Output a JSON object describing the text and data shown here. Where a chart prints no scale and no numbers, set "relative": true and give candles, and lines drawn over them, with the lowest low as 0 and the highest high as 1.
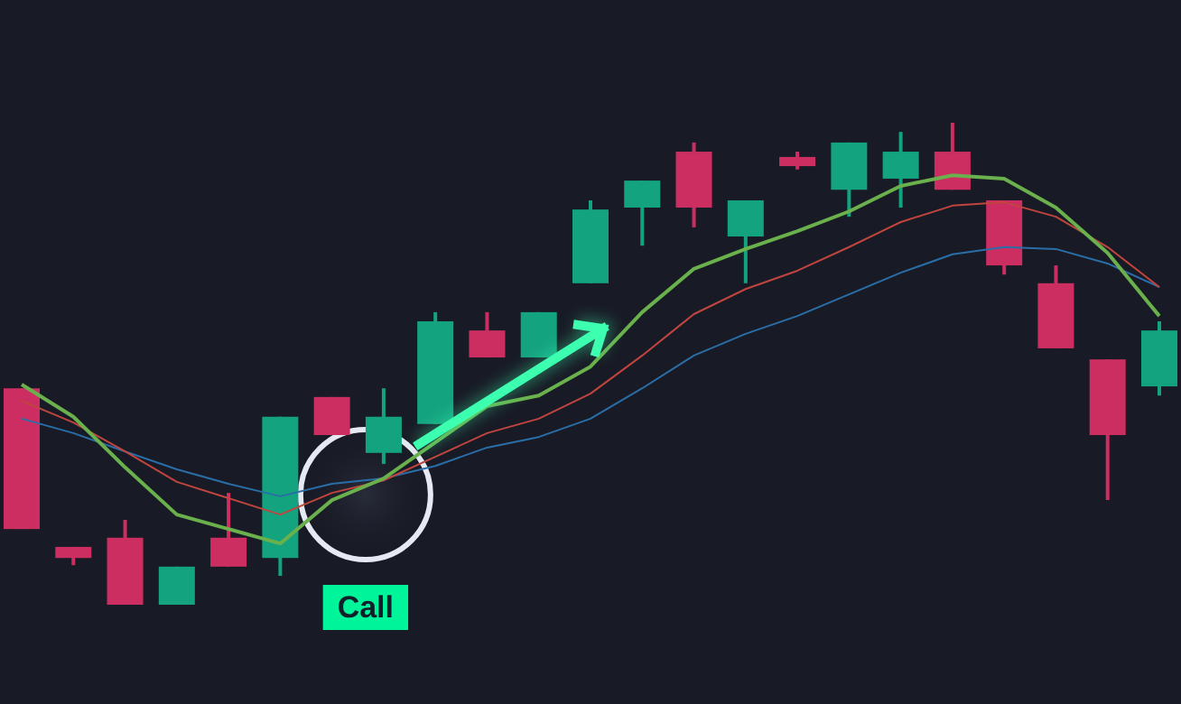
{
  "chart_data": {
    "type": "candlestick",
    "relative": true,
    "categories": [
      null,
      null,
      null,
      null,
      null,
      null,
      null,
      null,
      null,
      null,
      null,
      null,
      null,
      null,
      null,
      null,
      null,
      null,
      null,
      null,
      null,
      null,
      null
    ],
    "ohlc": [
      [
        0.449,
        0.449,
        0.157,
        0.157
      ],
      [
        0.12,
        0.12,
        0.082,
        0.097
      ],
      [
        0.139,
        0.176,
        0,
        0
      ],
      [
        0,
        0.079,
        0,
        0.079
      ],
      [
        0.139,
        0.232,
        0.079,
        0.079
      ],
      [
        0.097,
        0.39,
        0.06,
        0.39
      ],
      [
        0.431,
        0.431,
        0.352,
        0.352
      ],
      [
        0.315,
        0.449,
        0.292,
        0.39
      ],
      [
        0.375,
        0.607,
        0.375,
        0.588
      ],
      [
        0.569,
        0.607,
        0.513,
        0.513
      ],
      [
        0.513,
        0.607,
        0.513,
        0.607
      ],
      [
        0.667,
        0.839,
        0.667,
        0.82
      ],
      [
        0.824,
        0.88,
        0.745,
        0.88
      ],
      [
        0.94,
        0.959,
        0.783,
        0.824
      ],
      [
        0.764,
        0.839,
        0.667,
        0.839
      ],
      [
        0.929,
        0.94,
        0.903,
        0.91
      ],
      [
        0.861,
        0.959,
        0.805,
        0.959
      ],
      [
        0.884,
        0.981,
        0.824,
        0.94
      ],
      [
        0.94,
        1,
        0.861,
        0.861
      ],
      [
        0.839,
        0.839,
        0.685,
        0.704
      ],
      [
        0.667,
        0.704,
        0.532,
        0.532
      ],
      [
        0.509,
        0.509,
        0.217,
        0.352
      ],
      [
        0.453,
        0.588,
        0.434,
        0.569
      ]
    ],
    "colors": [
      "#cc2e62",
      "#cc2e62",
      "#cc2e62",
      "#14a37f",
      "#cc2e62",
      "#14a37f",
      "#cc2e62",
      "#14a37f",
      "#14a37f",
      "#cc2e62",
      "#14a37f",
      "#14a37f",
      "#14a37f",
      "#cc2e62",
      "#14a37f",
      "#cc2e62",
      "#14a37f",
      "#14a37f",
      "#cc2e62",
      "#cc2e62",
      "#cc2e62",
      "#cc2e62",
      "#14a37f"
    ],
    "series": [
      {
        "type": "line",
        "color": "#2a6ea8",
        "values": [
          0.386,
          0.356,
          0.318,
          0.281,
          0.251,
          0.225,
          0.251,
          0.262,
          0.288,
          0.326,
          0.348,
          0.386,
          0.449,
          0.517,
          0.562,
          0.599,
          0.644,
          0.689,
          0.727,
          0.742,
          0.738,
          0.708,
          0.659
        ]
      },
      {
        "type": "line",
        "color": "#c0453e",
        "values": [
          0.423,
          0.378,
          0.318,
          0.255,
          0.221,
          0.187,
          0.232,
          0.258,
          0.307,
          0.356,
          0.386,
          0.438,
          0.517,
          0.603,
          0.655,
          0.693,
          0.742,
          0.794,
          0.828,
          0.835,
          0.805,
          0.742,
          0.659
        ]
      },
      {
        "type": "line",
        "color": "#6ab04c",
        "values": [
          0.457,
          0.39,
          0.285,
          0.187,
          0.157,
          0.127,
          0.217,
          0.262,
          0.337,
          0.412,
          0.434,
          0.494,
          0.607,
          0.697,
          0.738,
          0.775,
          0.816,
          0.869,
          0.891,
          0.884,
          0.824,
          0.73,
          0.599
        ]
      }
    ],
    "annotations": [
      "Call"
    ]
  }
}
